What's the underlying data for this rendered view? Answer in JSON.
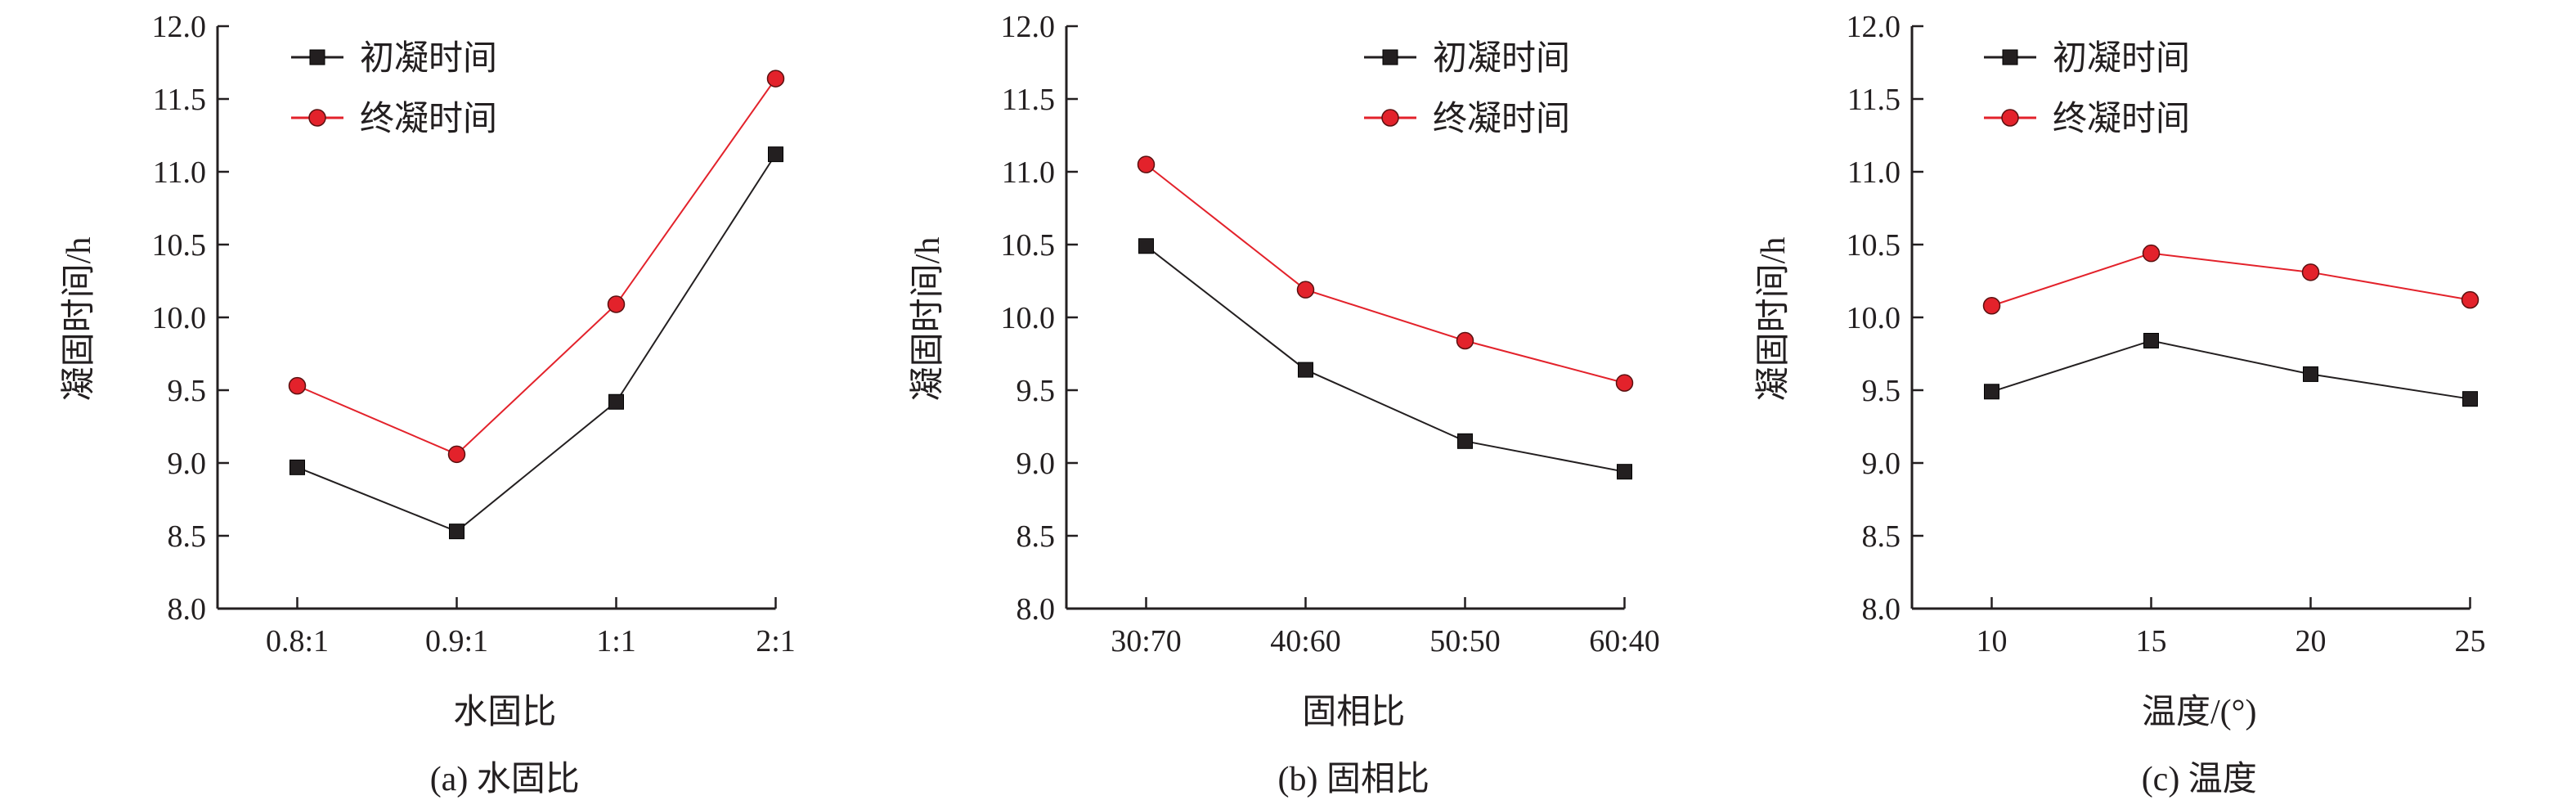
{
  "colors": {
    "initial": "#231f20",
    "final": "#e3222b",
    "axis": "#231f20"
  },
  "chart_data": [
    {
      "type": "line",
      "caption": "(a) 水固比",
      "xlabel": "水固比",
      "ylabel": "凝固时间/h",
      "categories": [
        "0.8:1",
        "0.9:1",
        "1:1",
        "2:1"
      ],
      "ylim": [
        8.0,
        12.0
      ],
      "yticks": [
        "8.0",
        "8.5",
        "9.0",
        "9.5",
        "10.0",
        "10.5",
        "11.0",
        "11.5",
        "12.0"
      ],
      "grid": false,
      "legend_position": "top-left",
      "series": [
        {
          "name": "初凝时间",
          "marker": "square",
          "values": [
            8.97,
            8.53,
            9.42,
            11.12
          ]
        },
        {
          "name": "终凝时间",
          "marker": "circle",
          "values": [
            9.53,
            9.06,
            10.09,
            11.64
          ]
        }
      ]
    },
    {
      "type": "line",
      "caption": "(b) 固相比",
      "xlabel": "固相比",
      "ylabel": "凝固时间/h",
      "categories": [
        "30:70",
        "40:60",
        "50:50",
        "60:40"
      ],
      "ylim": [
        8.0,
        12.0
      ],
      "yticks": [
        "8.0",
        "8.5",
        "9.0",
        "9.5",
        "10.0",
        "10.5",
        "11.0",
        "11.5",
        "12.0"
      ],
      "grid": false,
      "legend_position": "top-right",
      "series": [
        {
          "name": "初凝时间",
          "marker": "square",
          "values": [
            10.49,
            9.64,
            9.15,
            8.94
          ]
        },
        {
          "name": "终凝时间",
          "marker": "circle",
          "values": [
            11.05,
            10.19,
            9.84,
            9.55
          ]
        }
      ]
    },
    {
      "type": "line",
      "caption": "(c) 温度",
      "xlabel": "温度/(°)",
      "ylabel": "凝固时间/h",
      "categories": [
        "10",
        "15",
        "20",
        "25"
      ],
      "ylim": [
        8.0,
        12.0
      ],
      "yticks": [
        "8.0",
        "8.5",
        "9.0",
        "9.5",
        "10.0",
        "10.5",
        "11.0",
        "11.5",
        "12.0"
      ],
      "grid": false,
      "legend_position": "top-left",
      "series": [
        {
          "name": "初凝时间",
          "marker": "square",
          "values": [
            9.49,
            9.84,
            9.61,
            9.44
          ]
        },
        {
          "name": "终凝时间",
          "marker": "circle",
          "values": [
            10.08,
            10.44,
            10.31,
            10.12
          ]
        }
      ]
    }
  ]
}
